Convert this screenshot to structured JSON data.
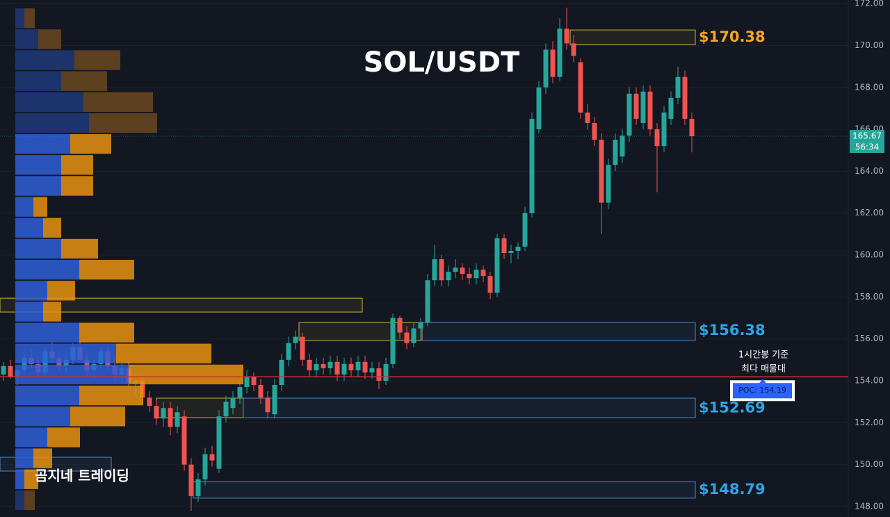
{
  "chart_data": {
    "type": "candlestick",
    "title": "SOL/USDT",
    "watermark": "곰지네 트레이딩",
    "up_color": "#26a69a",
    "down_color": "#ef5350",
    "xlim": [
      -0.5,
      99.5
    ],
    "ylim": [
      147.5,
      172.17
    ],
    "yticks": [
      {
        "value": 148,
        "label": "148.00"
      },
      {
        "value": 150,
        "label": "150.00"
      },
      {
        "value": 152,
        "label": "152.00"
      },
      {
        "value": 154,
        "label": "154.00"
      },
      {
        "value": 156,
        "label": "156.00"
      },
      {
        "value": 158,
        "label": "158.00"
      },
      {
        "value": 160,
        "label": "160.00"
      },
      {
        "value": 162,
        "label": "162.00"
      },
      {
        "value": 164,
        "label": "164.00"
      },
      {
        "value": 166,
        "label": "166.00"
      },
      {
        "value": 168,
        "label": "168.00"
      },
      {
        "value": 170,
        "label": "170.00"
      },
      {
        "value": 172,
        "label": "172.00"
      }
    ],
    "grid": true,
    "ohlc": [
      [
        154.3,
        154.9,
        154.0,
        154.7
      ],
      [
        154.7,
        155.0,
        154.1,
        154.2
      ],
      [
        154.2,
        154.6,
        153.8,
        154.5
      ],
      [
        154.5,
        155.3,
        154.3,
        155.1
      ],
      [
        155.1,
        155.5,
        154.6,
        154.8
      ],
      [
        154.8,
        155.2,
        154.2,
        154.4
      ],
      [
        154.4,
        155.6,
        154.2,
        155.4
      ],
      [
        155.4,
        155.9,
        154.9,
        155.1
      ],
      [
        155.1,
        155.4,
        154.5,
        154.7
      ],
      [
        154.7,
        155.3,
        154.4,
        155.0
      ],
      [
        155.0,
        155.8,
        154.8,
        155.6
      ],
      [
        155.6,
        155.9,
        154.9,
        155.0
      ],
      [
        155.0,
        155.3,
        154.2,
        154.5
      ],
      [
        154.5,
        155.0,
        154.1,
        154.8
      ],
      [
        154.8,
        155.6,
        154.6,
        155.4
      ],
      [
        155.4,
        155.7,
        154.5,
        154.7
      ],
      [
        154.7,
        155.1,
        154.0,
        154.3
      ],
      [
        154.3,
        154.8,
        153.9,
        154.6
      ],
      [
        154.6,
        154.9,
        153.6,
        153.9
      ],
      [
        153.9,
        154.3,
        153.3,
        154.0
      ],
      [
        154.0,
        154.3,
        152.9,
        153.2
      ],
      [
        153.2,
        153.5,
        152.5,
        152.8
      ],
      [
        152.8,
        153.1,
        151.9,
        152.2
      ],
      [
        152.2,
        153.0,
        151.8,
        152.7
      ],
      [
        152.7,
        153.0,
        151.4,
        151.8
      ],
      [
        151.8,
        152.8,
        151.5,
        152.5
      ],
      [
        152.3,
        152.6,
        149.7,
        150.0
      ],
      [
        150.0,
        150.3,
        147.8,
        148.5
      ],
      [
        148.5,
        149.6,
        148.2,
        149.3
      ],
      [
        149.3,
        150.8,
        149.0,
        150.5
      ],
      [
        150.5,
        150.9,
        149.9,
        150.2
      ],
      [
        149.8,
        152.6,
        149.6,
        152.3
      ],
      [
        152.3,
        153.3,
        152.0,
        153.0
      ],
      [
        152.7,
        153.5,
        152.4,
        153.2
      ],
      [
        153.2,
        154.0,
        152.9,
        153.7
      ],
      [
        153.7,
        154.5,
        153.4,
        154.2
      ],
      [
        154.2,
        154.4,
        153.5,
        153.8
      ],
      [
        153.8,
        154.1,
        152.9,
        153.2
      ],
      [
        153.2,
        153.5,
        152.2,
        152.5
      ],
      [
        152.4,
        154.1,
        152.2,
        153.8
      ],
      [
        153.8,
        155.3,
        153.5,
        155.0
      ],
      [
        155.0,
        156.1,
        154.7,
        155.8
      ],
      [
        155.8,
        156.4,
        155.5,
        156.1
      ],
      [
        156.1,
        156.3,
        154.7,
        155.0
      ],
      [
        155.0,
        155.3,
        154.2,
        154.5
      ],
      [
        154.5,
        155.1,
        154.2,
        154.8
      ],
      [
        154.8,
        155.1,
        154.3,
        154.6
      ],
      [
        154.6,
        155.2,
        154.3,
        154.9
      ],
      [
        154.9,
        155.2,
        154.0,
        154.3
      ],
      [
        154.3,
        155.1,
        154.0,
        154.8
      ],
      [
        154.8,
        155.1,
        154.2,
        154.5
      ],
      [
        154.5,
        155.2,
        154.2,
        154.9
      ],
      [
        154.9,
        155.2,
        154.1,
        154.4
      ],
      [
        154.4,
        154.9,
        154.1,
        154.6
      ],
      [
        154.6,
        154.9,
        153.6,
        154.0
      ],
      [
        154.0,
        155.1,
        153.8,
        154.8
      ],
      [
        154.8,
        157.2,
        154.6,
        157.0
      ],
      [
        157.0,
        157.1,
        156.0,
        156.3
      ],
      [
        156.3,
        156.6,
        155.5,
        155.8
      ],
      [
        155.8,
        156.8,
        155.6,
        156.5
      ],
      [
        156.5,
        157.0,
        156.2,
        156.8
      ],
      [
        156.8,
        159.1,
        156.6,
        158.8
      ],
      [
        158.8,
        160.5,
        158.5,
        159.8
      ],
      [
        159.8,
        160.0,
        158.5,
        158.8
      ],
      [
        158.8,
        159.5,
        158.5,
        159.2
      ],
      [
        159.2,
        159.8,
        158.9,
        159.4
      ],
      [
        159.4,
        159.6,
        158.8,
        159.1
      ],
      [
        159.1,
        159.4,
        158.6,
        158.9
      ],
      [
        158.9,
        159.6,
        158.6,
        159.3
      ],
      [
        159.3,
        159.5,
        158.7,
        159.0
      ],
      [
        159.0,
        159.2,
        157.9,
        158.2
      ],
      [
        158.2,
        161.0,
        158.0,
        160.8
      ],
      [
        160.8,
        161.0,
        159.8,
        160.1
      ],
      [
        160.1,
        160.5,
        159.6,
        160.2
      ],
      [
        160.2,
        160.6,
        159.8,
        160.4
      ],
      [
        160.4,
        162.3,
        160.2,
        162.0
      ],
      [
        162.0,
        166.8,
        161.8,
        166.5
      ],
      [
        166.0,
        168.3,
        165.8,
        168.0
      ],
      [
        168.0,
        170.1,
        167.7,
        169.8
      ],
      [
        169.8,
        170.2,
        168.2,
        168.5
      ],
      [
        168.5,
        171.3,
        168.3,
        170.8
      ],
      [
        170.8,
        171.8,
        169.8,
        170.1
      ],
      [
        170.1,
        170.5,
        169.2,
        169.5
      ],
      [
        169.2,
        169.4,
        166.5,
        166.8
      ],
      [
        166.8,
        167.2,
        166.0,
        166.3
      ],
      [
        166.3,
        166.6,
        165.2,
        165.5
      ],
      [
        165.5,
        165.8,
        161.0,
        162.5
      ],
      [
        162.5,
        164.6,
        162.2,
        164.3
      ],
      [
        164.3,
        165.8,
        164.0,
        165.5
      ],
      [
        164.7,
        166.0,
        164.4,
        165.7
      ],
      [
        165.7,
        168.0,
        165.4,
        167.7
      ],
      [
        167.7,
        168.0,
        166.2,
        166.5
      ],
      [
        166.3,
        168.1,
        166.0,
        167.8
      ],
      [
        167.8,
        168.1,
        165.7,
        166.0
      ],
      [
        166.0,
        166.3,
        163.0,
        165.2
      ],
      [
        165.2,
        167.1,
        164.9,
        166.8
      ],
      [
        166.5,
        167.8,
        166.2,
        167.5
      ],
      [
        167.5,
        169.0,
        167.2,
        168.5
      ],
      [
        168.5,
        168.8,
        166.2,
        166.5
      ],
      [
        166.5,
        166.8,
        164.9,
        165.67
      ]
    ],
    "last_price": {
      "value": 165.67,
      "label": "165.67",
      "countdown": "56:34",
      "color": "#26a69a"
    },
    "volume_profile": {
      "buy_color": "#2f5fd6",
      "sell_color": "#e8900f",
      "dim_buy_color": "#1f3a78",
      "dim_sell_color": "#6a4820",
      "value_area": [
        149,
        166
      ],
      "rows": [
        {
          "price": 171.3,
          "buy": 13,
          "sell": 15
        },
        {
          "price": 170.3,
          "buy": 33,
          "sell": 33
        },
        {
          "price": 169.3,
          "buy": 85,
          "sell": 66
        },
        {
          "price": 168.3,
          "buy": 66,
          "sell": 66
        },
        {
          "price": 167.3,
          "buy": 98,
          "sell": 100
        },
        {
          "price": 166.3,
          "buy": 106,
          "sell": 98
        },
        {
          "price": 165.3,
          "buy": 79,
          "sell": 59
        },
        {
          "price": 164.3,
          "buy": 66,
          "sell": 46
        },
        {
          "price": 163.3,
          "buy": 66,
          "sell": 46
        },
        {
          "price": 162.3,
          "buy": 26,
          "sell": 20
        },
        {
          "price": 161.3,
          "buy": 40,
          "sell": 26
        },
        {
          "price": 160.3,
          "buy": 66,
          "sell": 53
        },
        {
          "price": 159.3,
          "buy": 92,
          "sell": 79
        },
        {
          "price": 158.3,
          "buy": 46,
          "sell": 40
        },
        {
          "price": 157.3,
          "buy": 40,
          "sell": 26
        },
        {
          "price": 156.3,
          "buy": 92,
          "sell": 79
        },
        {
          "price": 155.3,
          "buy": 145,
          "sell": 137
        },
        {
          "price": 154.3,
          "buy": 163,
          "sell": 165
        },
        {
          "price": 153.3,
          "buy": 92,
          "sell": 92
        },
        {
          "price": 152.3,
          "buy": 79,
          "sell": 79
        },
        {
          "price": 151.3,
          "buy": 46,
          "sell": 47
        },
        {
          "price": 150.3,
          "buy": 26,
          "sell": 27
        },
        {
          "price": 149.3,
          "buy": 13,
          "sell": 20
        },
        {
          "price": 148.3,
          "buy": 13,
          "sell": 15
        }
      ]
    },
    "poc": {
      "value": 154.19,
      "label": "POC: 154.19",
      "color": "#d32f2f",
      "note": [
        "1시간봉 기준",
        "최다 매물대"
      ]
    },
    "zones": [
      {
        "top": 170.74,
        "bottom": 170.04,
        "from": 81.5,
        "to": 99.5,
        "color": "#c9b037",
        "price_label": {
          "value": 170.38,
          "label": "$170.38",
          "color": "#f5a623"
        }
      },
      {
        "top": 157.94,
        "bottom": 157.28,
        "from": -0.5,
        "to": 51.6,
        "color": "#c9b037"
      },
      {
        "top": 156.78,
        "bottom": 155.92,
        "from": 42.5,
        "to": 60.2,
        "color": "#c9b037"
      },
      {
        "top": 156.78,
        "bottom": 155.92,
        "from": 60,
        "to": 99.5,
        "color": "#4a8cc9",
        "price_label": {
          "value": 156.38,
          "label": "$156.38",
          "color": "#2fa4e7"
        }
      },
      {
        "top": 153.17,
        "bottom": 152.24,
        "from": 22,
        "to": 34.5,
        "color": "#c9b037"
      },
      {
        "top": 153.17,
        "bottom": 152.24,
        "from": 34.5,
        "to": 99.5,
        "color": "#4a8cc9",
        "price_label": {
          "value": 152.69,
          "label": "$152.69",
          "color": "#2fa4e7"
        }
      },
      {
        "top": 150.35,
        "bottom": 149.69,
        "from": -0.5,
        "to": 15.5,
        "color": "#4a8cc9"
      },
      {
        "top": 149.19,
        "bottom": 148.4,
        "from": 27.3,
        "to": 99.5,
        "color": "#4a8cc9",
        "price_label": {
          "value": 148.79,
          "label": "$148.79",
          "color": "#2fa4e7"
        }
      }
    ]
  }
}
